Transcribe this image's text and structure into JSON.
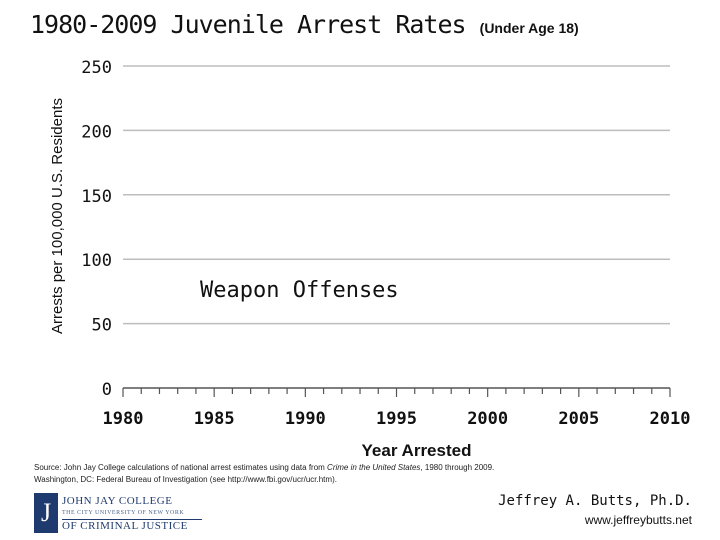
{
  "header": {
    "title_main": "1980-2009 Juvenile Arrest Rates",
    "title_sub": "(Under Age 18)"
  },
  "chart_data": {
    "type": "line",
    "title": "1980-2009 Juvenile Arrest Rates (Under Age 18)",
    "xlabel": "Year Arrested",
    "ylabel": "Arrests per 100,000 U.S. Residents",
    "xlim": [
      1980,
      2010
    ],
    "ylim": [
      0,
      250
    ],
    "xticks": [
      1980,
      1985,
      1990,
      1995,
      2000,
      2005,
      2010
    ],
    "yticks": [
      0,
      50,
      100,
      150,
      200,
      250
    ],
    "grid": true,
    "annotation": "Weapon Offenses",
    "series": []
  },
  "source": {
    "prefix": "Source: John Jay College calculations of national arrest estimates using data from ",
    "italic": "Crime in the United States",
    "suffix": ", 1980 through 2009.",
    "line2": "Washington, DC: Federal Bureau of Investigation (see http://www.fbi.gov/ucr/ucr.htm)."
  },
  "footer": {
    "logo_letter": "J",
    "logo_line1": "JOHN JAY COLLEGE",
    "logo_line2": "THE CITY UNIVERSITY OF NEW YORK",
    "logo_line3": "OF CRIMINAL JUSTICE",
    "author_name": "Jeffrey A. Butts, Ph.D.",
    "author_url": "www.jeffreybutts.net"
  },
  "colors": {
    "grid": "#bdbdbd",
    "axis": "#555555",
    "text": "#111111",
    "brand": "#1f3a6e"
  }
}
